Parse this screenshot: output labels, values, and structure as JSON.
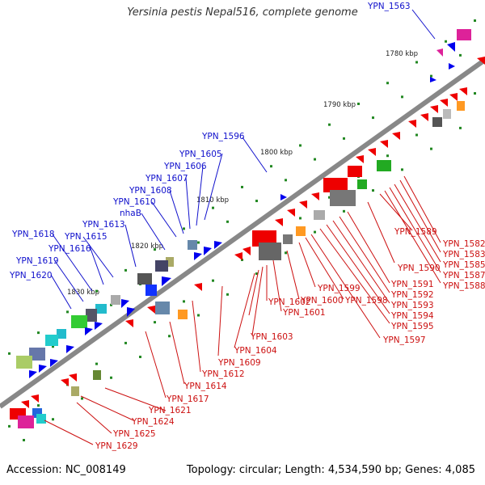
{
  "title": "Yersinia pestis Nepal516, complete genome",
  "accession_text": "Accession: NC_008149",
  "summary_text": "Topology: circular; Length: 4,534,590 bp; Genes: 4,085",
  "kbp_ticks": [
    "1780 kbp",
    "1790 kbp",
    "1800 kbp",
    "1810 kbp",
    "1820 kbp",
    "1830 kbp"
  ],
  "genes_top": [
    "YPN_1563",
    "YPN_1596",
    "YPN_1605",
    "YPN_1606",
    "YPN_1607",
    "YPN_1608",
    "YPN_1610",
    "nhaB",
    "YPN_1613",
    "YPN_1615",
    "YPN_1616",
    "YPN_1618",
    "YPN_1619",
    "YPN_1620"
  ],
  "genes_bottom_right": [
    "YPN_1582",
    "YPN_1583",
    "YPN_1585",
    "YPN_1587",
    "YPN_1588",
    "YPN_1589",
    "YPN_1590",
    "YPN_1591",
    "YPN_1592",
    "YPN_1593",
    "YPN_1594",
    "YPN_1595",
    "YPN_1597",
    "YPN_1598",
    "YPN_1599",
    "YPN_1600",
    "YPN_1601",
    "YPN_1602",
    "YPN_1603",
    "YPN_1604",
    "YPN_1609",
    "YPN_1612",
    "YPN_1614",
    "YPN_1617",
    "YPN_1621",
    "YPN_1624",
    "YPN_1625",
    "YPN_1629"
  ],
  "colors": {
    "blue": "#0000ee",
    "red": "#ee0000",
    "backbone": "#777777",
    "dots": "#228822",
    "label_blue": "#1010cc",
    "label_red": "#cc1010"
  }
}
